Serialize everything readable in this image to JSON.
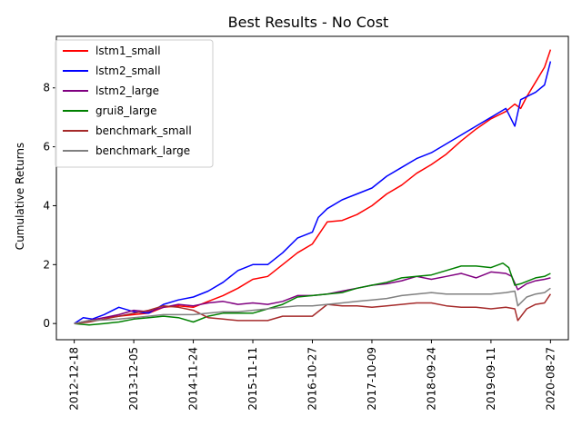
{
  "chart_data": {
    "type": "line",
    "title": "Best Results - No Cost",
    "xlabel": "",
    "ylabel": "Cumulative Returns",
    "ylim": [
      -0.55,
      9.75
    ],
    "yticks": [
      0,
      2,
      4,
      6,
      8
    ],
    "xticks": [
      "2012-12-18",
      "2013-12-05",
      "2014-11-24",
      "2015-11-11",
      "2016-10-27",
      "2017-10-09",
      "2018-09-24",
      "2019-09-11",
      "2020-08-27"
    ],
    "xlim": [
      -0.3,
      8.3
    ],
    "legend": "top-left",
    "grid": false,
    "series": [
      {
        "name": "lstm1_small",
        "color": "#ff0000",
        "x": [
          0,
          0.25,
          0.5,
          0.75,
          1.0,
          1.25,
          1.5,
          1.75,
          2.0,
          2.25,
          2.5,
          2.75,
          3.0,
          3.25,
          3.5,
          3.75,
          4.0,
          4.1,
          4.25,
          4.5,
          4.75,
          5.0,
          5.25,
          5.5,
          5.75,
          6.0,
          6.25,
          6.5,
          6.75,
          7.0,
          7.25,
          7.4,
          7.5,
          7.6,
          7.75,
          7.9,
          8.0
        ],
        "y": [
          0.0,
          0.1,
          0.2,
          0.25,
          0.3,
          0.35,
          0.55,
          0.6,
          0.55,
          0.75,
          0.95,
          1.2,
          1.5,
          1.6,
          2.0,
          2.4,
          2.7,
          3.0,
          3.45,
          3.5,
          3.7,
          4.0,
          4.4,
          4.7,
          5.1,
          5.4,
          5.75,
          6.2,
          6.6,
          6.95,
          7.2,
          7.45,
          7.3,
          7.7,
          8.2,
          8.7,
          9.3
        ]
      },
      {
        "name": "lstm2_small",
        "color": "#0000ff",
        "x": [
          0,
          0.15,
          0.3,
          0.5,
          0.75,
          1.0,
          1.25,
          1.5,
          1.75,
          2.0,
          2.25,
          2.5,
          2.75,
          3.0,
          3.25,
          3.5,
          3.75,
          4.0,
          4.1,
          4.25,
          4.5,
          4.75,
          5.0,
          5.25,
          5.5,
          5.75,
          6.0,
          6.25,
          6.5,
          6.75,
          7.0,
          7.25,
          7.4,
          7.5,
          7.75,
          7.9,
          8.0
        ],
        "y": [
          0.0,
          0.2,
          0.15,
          0.3,
          0.55,
          0.4,
          0.35,
          0.65,
          0.8,
          0.9,
          1.1,
          1.4,
          1.8,
          2.0,
          2.0,
          2.4,
          2.9,
          3.1,
          3.6,
          3.9,
          4.2,
          4.4,
          4.6,
          5.0,
          5.3,
          5.6,
          5.8,
          6.1,
          6.4,
          6.7,
          7.0,
          7.3,
          6.7,
          7.6,
          7.85,
          8.1,
          8.9
        ]
      },
      {
        "name": "lstm2_large",
        "color": "#800080",
        "x": [
          0,
          0.25,
          0.5,
          0.75,
          1.0,
          1.25,
          1.5,
          1.75,
          2.0,
          2.25,
          2.5,
          2.75,
          3.0,
          3.25,
          3.5,
          3.75,
          4.0,
          4.25,
          4.5,
          4.75,
          5.0,
          5.25,
          5.5,
          5.75,
          6.0,
          6.25,
          6.5,
          6.75,
          7.0,
          7.25,
          7.35,
          7.45,
          7.6,
          7.75,
          7.9,
          8.0
        ],
        "y": [
          0.0,
          0.1,
          0.2,
          0.3,
          0.45,
          0.4,
          0.55,
          0.65,
          0.6,
          0.7,
          0.75,
          0.65,
          0.7,
          0.65,
          0.75,
          0.95,
          0.95,
          1.0,
          1.1,
          1.2,
          1.3,
          1.35,
          1.45,
          1.6,
          1.5,
          1.6,
          1.7,
          1.55,
          1.75,
          1.7,
          1.6,
          1.15,
          1.35,
          1.45,
          1.5,
          1.55
        ]
      },
      {
        "name": "grui8_large",
        "color": "#008000",
        "x": [
          0,
          0.25,
          0.5,
          0.75,
          1.0,
          1.25,
          1.5,
          1.75,
          2.0,
          2.25,
          2.5,
          2.75,
          3.0,
          3.25,
          3.5,
          3.75,
          4.0,
          4.25,
          4.5,
          4.75,
          5.0,
          5.25,
          5.5,
          5.75,
          6.0,
          6.25,
          6.5,
          6.75,
          7.0,
          7.2,
          7.3,
          7.4,
          7.5,
          7.75,
          7.9,
          8.0
        ],
        "y": [
          0.0,
          -0.05,
          0.0,
          0.05,
          0.15,
          0.2,
          0.25,
          0.2,
          0.05,
          0.25,
          0.35,
          0.35,
          0.35,
          0.5,
          0.65,
          0.9,
          0.95,
          1.0,
          1.05,
          1.2,
          1.3,
          1.4,
          1.55,
          1.6,
          1.65,
          1.8,
          1.95,
          1.95,
          1.9,
          2.05,
          1.9,
          1.3,
          1.35,
          1.55,
          1.6,
          1.7
        ]
      },
      {
        "name": "benchmark_small",
        "color": "#a52a2a",
        "x": [
          0,
          0.25,
          0.5,
          0.75,
          1.0,
          1.25,
          1.5,
          1.75,
          2.0,
          2.25,
          2.5,
          2.75,
          3.0,
          3.25,
          3.5,
          3.75,
          4.0,
          4.25,
          4.5,
          4.75,
          5.0,
          5.25,
          5.5,
          5.75,
          6.0,
          6.25,
          6.5,
          6.75,
          7.0,
          7.25,
          7.4,
          7.45,
          7.6,
          7.75,
          7.9,
          8.0
        ],
        "y": [
          0.0,
          0.05,
          0.15,
          0.25,
          0.35,
          0.45,
          0.6,
          0.55,
          0.45,
          0.2,
          0.15,
          0.1,
          0.1,
          0.1,
          0.25,
          0.25,
          0.25,
          0.65,
          0.6,
          0.6,
          0.55,
          0.6,
          0.65,
          0.7,
          0.7,
          0.6,
          0.55,
          0.55,
          0.5,
          0.55,
          0.5,
          0.1,
          0.5,
          0.65,
          0.7,
          1.0
        ]
      },
      {
        "name": "benchmark_large",
        "color": "#808080",
        "x": [
          0,
          0.25,
          0.5,
          0.75,
          1.0,
          1.25,
          1.5,
          1.75,
          2.0,
          2.25,
          2.5,
          2.75,
          3.0,
          3.25,
          3.5,
          3.75,
          4.0,
          4.25,
          4.5,
          4.75,
          5.0,
          5.25,
          5.5,
          5.75,
          6.0,
          6.25,
          6.5,
          6.75,
          7.0,
          7.25,
          7.4,
          7.45,
          7.6,
          7.75,
          7.9,
          8.0
        ],
        "y": [
          0.0,
          0.1,
          0.12,
          0.15,
          0.2,
          0.25,
          0.3,
          0.3,
          0.3,
          0.35,
          0.4,
          0.4,
          0.45,
          0.5,
          0.55,
          0.6,
          0.6,
          0.65,
          0.7,
          0.75,
          0.8,
          0.85,
          0.95,
          1.0,
          1.05,
          1.0,
          1.0,
          1.0,
          1.0,
          1.05,
          1.1,
          0.6,
          0.9,
          1.0,
          1.05,
          1.2
        ]
      }
    ]
  }
}
